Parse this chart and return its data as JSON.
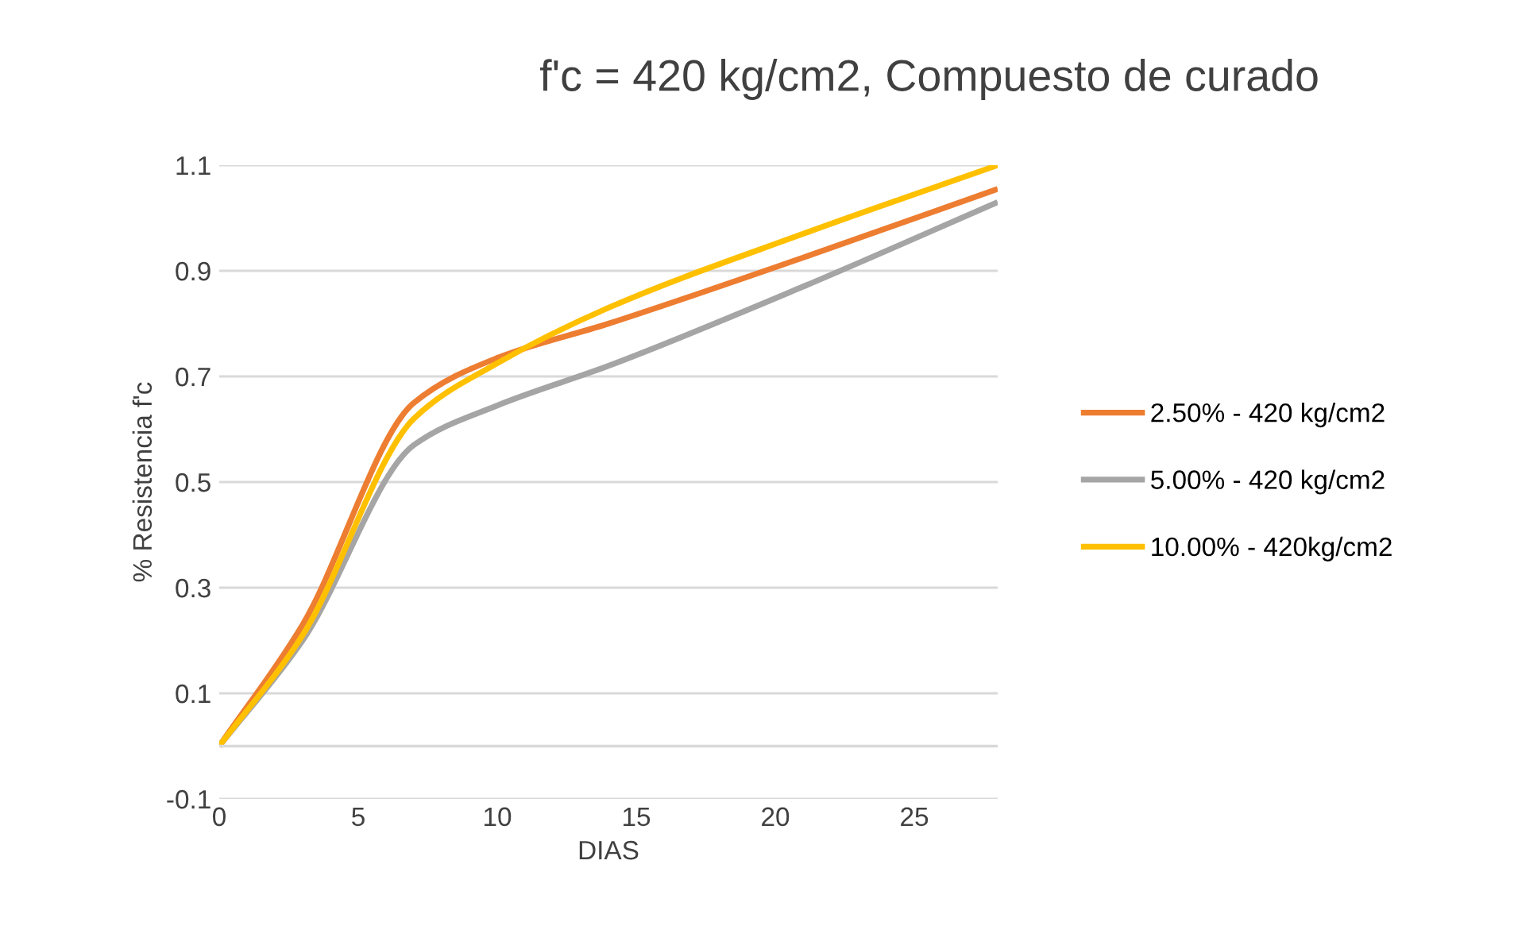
{
  "chart_data": {
    "type": "line",
    "title": "f'c = 420 kg/cm2, Compuesto de curado",
    "xlabel": "DIAS",
    "ylabel": "% Resistencia f'c",
    "x": [
      0,
      3,
      7,
      10,
      14,
      21,
      28
    ],
    "series": [
      {
        "name": "2.50% - 420 kg/cm2",
        "color": "#ed7d31",
        "values": [
          0,
          0.23,
          0.65,
          0.735,
          0.8,
          0.925,
          1.055
        ]
      },
      {
        "name": "5.00% - 420 kg/cm2",
        "color": "#a5a5a5",
        "values": [
          0,
          0.2,
          0.57,
          0.645,
          0.72,
          0.87,
          1.03
        ]
      },
      {
        "name": "10.00% - 420kg/cm2",
        "color": "#ffc000",
        "values": [
          0,
          0.21,
          0.62,
          0.725,
          0.83,
          0.97,
          1.1
        ]
      }
    ],
    "xlim": [
      0,
      28
    ],
    "xticks": [
      0,
      5,
      10,
      15,
      20,
      25
    ],
    "ylim": [
      -0.1,
      1.1
    ],
    "yticks": [
      -0.1,
      0.1,
      0.3,
      0.5,
      0.7,
      0.9,
      1.1
    ],
    "ref_lines": [
      {
        "axis": "y",
        "value": 0,
        "color": "#d9d9d9"
      }
    ],
    "grid": "y",
    "legend": "right",
    "marker": "none",
    "line_style": "solid"
  }
}
